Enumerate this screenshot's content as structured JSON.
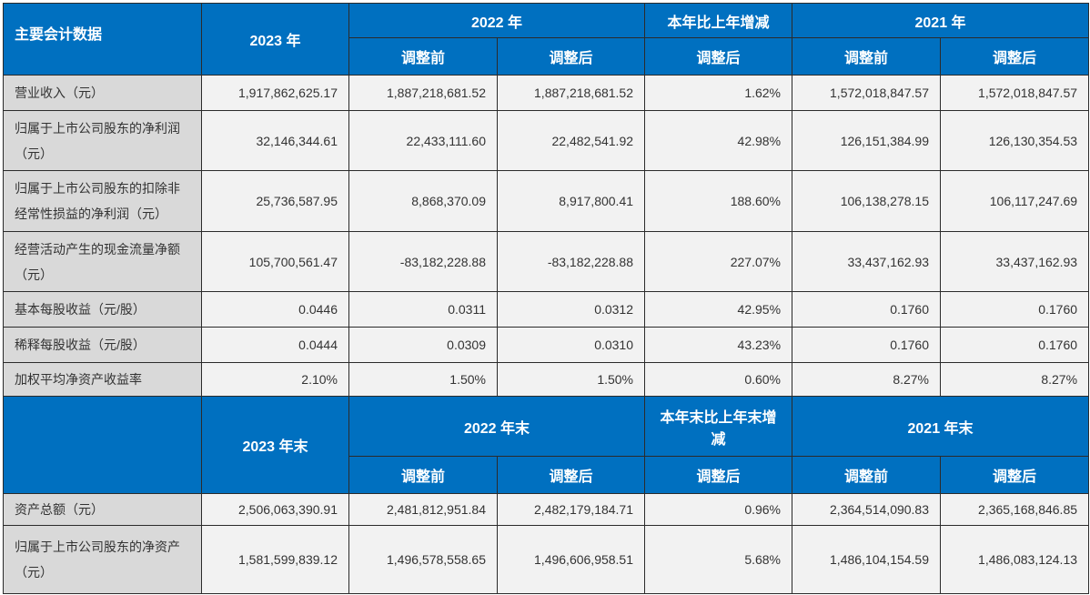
{
  "section1": {
    "corner": "主要会计数据",
    "col_2023": "2023 年",
    "col_2022": "2022 年",
    "col_change": "本年比上年增减",
    "col_2021": "2021 年",
    "sub_before": "调整前",
    "sub_after": "调整后",
    "rows": [
      {
        "label": "营业收入（元）",
        "values": [
          "1,917,862,625.17",
          "1,887,218,681.52",
          "1,887,218,681.52",
          "1.62%",
          "1,572,018,847.57",
          "1,572,018,847.57"
        ]
      },
      {
        "label": "归属于上市公司股东的净利润（元）",
        "values": [
          "32,146,344.61",
          "22,433,111.60",
          "22,482,541.92",
          "42.98%",
          "126,151,384.99",
          "126,130,354.53"
        ]
      },
      {
        "label": "归属于上市公司股东的扣除非经常性损益的净利润（元）",
        "values": [
          "25,736,587.95",
          "8,868,370.09",
          "8,917,800.41",
          "188.60%",
          "106,138,278.15",
          "106,117,247.69"
        ]
      },
      {
        "label": "经营活动产生的现金流量净额（元）",
        "values": [
          "105,700,561.47",
          "-83,182,228.88",
          "-83,182,228.88",
          "227.07%",
          "33,437,162.93",
          "33,437,162.93"
        ]
      },
      {
        "label": "基本每股收益（元/股）",
        "values": [
          "0.0446",
          "0.0311",
          "0.0312",
          "42.95%",
          "0.1760",
          "0.1760"
        ]
      },
      {
        "label": "稀释每股收益（元/股）",
        "values": [
          "0.0444",
          "0.0309",
          "0.0310",
          "43.23%",
          "0.1760",
          "0.1760"
        ]
      },
      {
        "label": "加权平均净资产收益率",
        "values": [
          "2.10%",
          "1.50%",
          "1.50%",
          "0.60%",
          "8.27%",
          "8.27%"
        ]
      }
    ]
  },
  "section2": {
    "corner": "",
    "col_2023": "2023 年末",
    "col_2022": "2022 年末",
    "col_change": "本年末比上年末增减",
    "col_2021": "2021 年末",
    "sub_before": "调整前",
    "sub_after": "调整后",
    "rows": [
      {
        "label": "资产总额（元）",
        "values": [
          "2,506,063,390.91",
          "2,481,812,951.84",
          "2,482,179,184.71",
          "0.96%",
          "2,364,514,090.83",
          "2,365,168,846.85"
        ]
      },
      {
        "label": "归属于上市公司股东的净资产（元）",
        "values": [
          "1,581,599,839.12",
          "1,496,578,558.65",
          "1,496,606,958.51",
          "5.68%",
          "1,486,104,154.59",
          "1,486,083,124.13"
        ]
      }
    ]
  },
  "colors": {
    "header": "#0070C0",
    "label_bg": "#D9D9D9",
    "cell_bg": "#F2F2F2"
  }
}
